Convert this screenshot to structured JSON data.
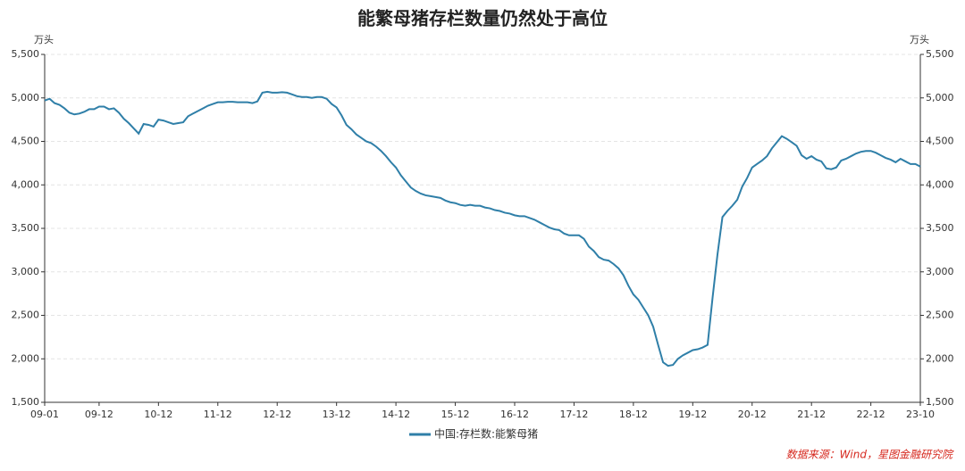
{
  "chart_data": {
    "type": "line",
    "title": "能繁母猪存栏数量仍然处于高位",
    "y_unit": "万头",
    "y2_unit": "万头",
    "source": "数据来源：Wind，星图金融研究院",
    "categories": [
      "09-01",
      null,
      null,
      null,
      null,
      null,
      null,
      null,
      null,
      null,
      null,
      "09-12",
      null,
      null,
      null,
      null,
      null,
      null,
      null,
      null,
      null,
      null,
      null,
      "10-12",
      null,
      null,
      null,
      null,
      null,
      null,
      null,
      null,
      null,
      null,
      null,
      "11-12",
      null,
      null,
      null,
      null,
      null,
      null,
      null,
      null,
      null,
      null,
      null,
      "12-12",
      null,
      null,
      null,
      null,
      null,
      null,
      null,
      null,
      null,
      null,
      null,
      "13-12",
      null,
      null,
      null,
      null,
      null,
      null,
      null,
      null,
      null,
      null,
      null,
      "14-12",
      null,
      null,
      null,
      null,
      null,
      null,
      null,
      null,
      null,
      null,
      null,
      "15-12",
      null,
      null,
      null,
      null,
      null,
      null,
      null,
      null,
      null,
      null,
      null,
      "16-12",
      null,
      null,
      null,
      null,
      null,
      null,
      null,
      null,
      null,
      null,
      null,
      "17-12",
      null,
      null,
      null,
      null,
      null,
      null,
      null,
      null,
      null,
      null,
      null,
      "18-12",
      null,
      null,
      null,
      null,
      null,
      null,
      null,
      null,
      null,
      null,
      null,
      "19-12",
      null,
      null,
      null,
      null,
      null,
      null,
      null,
      null,
      null,
      null,
      null,
      "20-12",
      null,
      null,
      null,
      null,
      null,
      null,
      null,
      null,
      null,
      null,
      null,
      "21-12",
      null,
      null,
      null,
      null,
      null,
      null,
      null,
      null,
      null,
      null,
      null,
      "22-12",
      null,
      null,
      null,
      null,
      null,
      null,
      null,
      null,
      null,
      "23-10"
    ],
    "series": [
      {
        "name": "中国:存栏数:能繁母猪",
        "color": "#2f7fa8",
        "values": [
          4970,
          4990,
          4940,
          4920,
          4880,
          4830,
          4810,
          4820,
          4840,
          4870,
          4870,
          4900,
          4900,
          4870,
          4880,
          4830,
          4760,
          4710,
          4650,
          4590,
          4700,
          4690,
          4670,
          4750,
          4740,
          4720,
          4700,
          4710,
          4720,
          4790,
          4820,
          4850,
          4880,
          4910,
          4930,
          4950,
          4950,
          4955,
          4955,
          4950,
          4950,
          4950,
          4940,
          4960,
          5060,
          5070,
          5060,
          5060,
          5065,
          5060,
          5040,
          5020,
          5010,
          5010,
          5000,
          5010,
          5010,
          4990,
          4930,
          4890,
          4800,
          4690,
          4640,
          4580,
          4540,
          4500,
          4480,
          4440,
          4390,
          4330,
          4260,
          4200,
          4110,
          4040,
          3970,
          3930,
          3900,
          3880,
          3870,
          3860,
          3850,
          3820,
          3800,
          3790,
          3770,
          3760,
          3770,
          3760,
          3760,
          3740,
          3730,
          3710,
          3700,
          3680,
          3670,
          3650,
          3640,
          3640,
          3620,
          3600,
          3570,
          3540,
          3510,
          3490,
          3480,
          3440,
          3420,
          3420,
          3420,
          3380,
          3290,
          3240,
          3170,
          3140,
          3130,
          3090,
          3040,
          2960,
          2840,
          2740,
          2680,
          2590,
          2500,
          2370,
          2160,
          1960,
          1920,
          1930,
          2000,
          2040,
          2070,
          2100,
          2110,
          2130,
          2160,
          2700,
          3200,
          3630,
          3700,
          3760,
          3830,
          3980,
          4080,
          4200,
          4240,
          4280,
          4330,
          4420,
          4490,
          4560,
          4530,
          4490,
          4450,
          4340,
          4300,
          4330,
          4290,
          4270,
          4190,
          4180,
          4200,
          4280,
          4300,
          4330,
          4360,
          4380,
          4390,
          4390,
          4370,
          4340,
          4310,
          4290,
          4260,
          4300,
          4270,
          4240,
          4240,
          4210
        ]
      }
    ],
    "ylim": [
      1500,
      5500
    ],
    "yticks": [
      {
        "value": 1500,
        "label": "1,500"
      },
      {
        "value": 2000,
        "label": "2,000"
      },
      {
        "value": 2500,
        "label": "2,500"
      },
      {
        "value": 3000,
        "label": "3,000"
      },
      {
        "value": 3500,
        "label": "3,500"
      },
      {
        "value": 4000,
        "label": "4,000"
      },
      {
        "value": 4500,
        "label": "4,500"
      },
      {
        "value": 5000,
        "label": "5,000"
      },
      {
        "value": 5500,
        "label": "5,500"
      }
    ],
    "y2lim": [
      1500,
      5500
    ],
    "y2ticks": [
      {
        "value": 1500,
        "label": "1,500"
      },
      {
        "value": 2000,
        "label": "2,000"
      },
      {
        "value": 2500,
        "label": "2,500"
      },
      {
        "value": 3000,
        "label": "3,000"
      },
      {
        "value": 3500,
        "label": "3,500"
      },
      {
        "value": 4000,
        "label": "4,000"
      },
      {
        "value": 4500,
        "label": "4,500"
      },
      {
        "value": 5000,
        "label": "5,000"
      },
      {
        "value": 5500,
        "label": "5,500"
      }
    ],
    "grid": true,
    "legend": "bottom"
  }
}
